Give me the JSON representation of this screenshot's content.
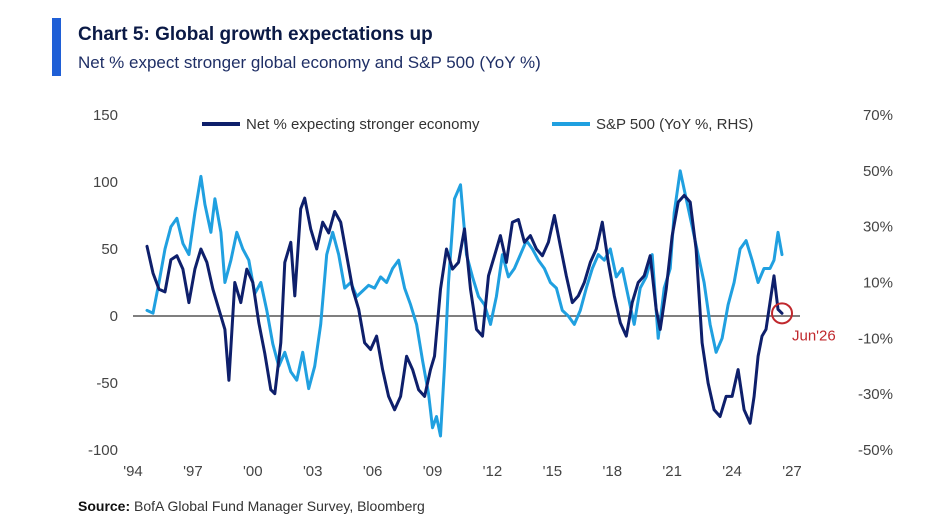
{
  "header": {
    "title": "Chart 5: Global growth expectations up",
    "subtitle": "Net % expect stronger global economy and S&P 500 (YoY %)"
  },
  "source": {
    "label": "Source:",
    "text": " BofA Global Fund Manager Survey, Bloomberg"
  },
  "colors": {
    "accent": "#1f5fd6",
    "net_series": "#0e1f6b",
    "sp_series": "#20a0e0",
    "annotation": "#c0282d"
  },
  "chart_data": {
    "type": "line",
    "x_unit": "year",
    "xlim": [
      1994,
      2027
    ],
    "x_ticks": [
      1994,
      1997,
      2000,
      2003,
      2006,
      2009,
      2012,
      2015,
      2018,
      2021,
      2024,
      2027
    ],
    "x_tick_labels": [
      "'94",
      "'97",
      "'00",
      "'03",
      "'06",
      "'09",
      "'12",
      "'15",
      "'18",
      "'21",
      "'24",
      "'27"
    ],
    "ylim_left": [
      -100,
      150
    ],
    "y_ticks_left": [
      150,
      100,
      50,
      0,
      -50,
      -100
    ],
    "y_tick_labels_left": [
      "150",
      "100",
      "50",
      "0",
      "-50",
      "-100"
    ],
    "ylim_right": [
      -50,
      70
    ],
    "y_ticks_right": [
      70,
      50,
      30,
      10,
      -10,
      -30,
      -50
    ],
    "y_tick_labels_right": [
      "70%",
      "50%",
      "30%",
      "10%",
      "-10%",
      "-30%",
      "-50%"
    ],
    "zero_line": true,
    "legend_position": "top-center",
    "series": [
      {
        "name": "Net % expecting stronger economy",
        "axis": "left",
        "x": [
          1994.7,
          1995.0,
          1995.3,
          1995.6,
          1995.9,
          1996.2,
          1996.5,
          1996.8,
          1997.1,
          1997.4,
          1997.7,
          1998.0,
          1998.3,
          1998.6,
          1998.8,
          1999.1,
          1999.4,
          1999.7,
          2000.0,
          2000.3,
          2000.6,
          2000.9,
          2001.1,
          2001.4,
          2001.6,
          2001.9,
          2002.1,
          2002.4,
          2002.6,
          2002.9,
          2003.2,
          2003.5,
          2003.8,
          2004.1,
          2004.4,
          2004.7,
          2005.0,
          2005.3,
          2005.6,
          2005.9,
          2006.2,
          2006.5,
          2006.8,
          2007.1,
          2007.4,
          2007.7,
          2008.0,
          2008.3,
          2008.6,
          2008.9,
          2009.1,
          2009.4,
          2009.7,
          2010.0,
          2010.3,
          2010.6,
          2010.9,
          2011.2,
          2011.5,
          2011.8,
          2012.1,
          2012.4,
          2012.7,
          2013.0,
          2013.3,
          2013.6,
          2013.9,
          2014.2,
          2014.5,
          2014.8,
          2015.1,
          2015.4,
          2015.7,
          2016.0,
          2016.3,
          2016.6,
          2016.9,
          2017.2,
          2017.5,
          2017.8,
          2018.1,
          2018.4,
          2018.7,
          2019.0,
          2019.3,
          2019.6,
          2019.9,
          2020.2,
          2020.4,
          2020.7,
          2021.0,
          2021.3,
          2021.6,
          2021.9,
          2022.2,
          2022.5,
          2022.8,
          2023.1,
          2023.4,
          2023.7,
          2024.0,
          2024.3,
          2024.6,
          2024.9,
          2025.1,
          2025.3,
          2025.5,
          2025.7,
          2025.9,
          2026.1,
          2026.3,
          2026.5
        ],
        "y": [
          52,
          32,
          20,
          18,
          42,
          45,
          35,
          10,
          35,
          50,
          40,
          20,
          5,
          -10,
          -48,
          25,
          10,
          35,
          25,
          -5,
          -28,
          -55,
          -58,
          -20,
          40,
          55,
          15,
          80,
          88,
          65,
          50,
          70,
          62,
          78,
          70,
          45,
          20,
          5,
          -20,
          -25,
          -15,
          -40,
          -60,
          -70,
          -60,
          -30,
          -40,
          -55,
          -60,
          -40,
          -30,
          20,
          50,
          35,
          40,
          65,
          20,
          -10,
          -15,
          30,
          45,
          60,
          40,
          70,
          72,
          55,
          60,
          50,
          45,
          55,
          75,
          52,
          30,
          10,
          15,
          25,
          40,
          50,
          70,
          40,
          15,
          -5,
          -15,
          10,
          25,
          30,
          45,
          5,
          -10,
          20,
          60,
          85,
          90,
          85,
          50,
          -20,
          -50,
          -70,
          -75,
          -60,
          -60,
          -40,
          -70,
          -80,
          -60,
          -30,
          -15,
          -10,
          10,
          30,
          5,
          2
        ]
      },
      {
        "name": "S&P 500 (YoY %, RHS)",
        "axis": "right",
        "x": [
          1994.7,
          1995.0,
          1995.3,
          1995.6,
          1995.9,
          1996.2,
          1996.5,
          1996.8,
          1997.1,
          1997.4,
          1997.6,
          1997.9,
          1998.1,
          1998.4,
          1998.6,
          1998.9,
          1999.2,
          1999.5,
          1999.8,
          2000.1,
          2000.4,
          2000.7,
          2001.0,
          2001.3,
          2001.6,
          2001.9,
          2002.2,
          2002.5,
          2002.8,
          2003.1,
          2003.4,
          2003.7,
          2004.0,
          2004.3,
          2004.6,
          2004.9,
          2005.2,
          2005.5,
          2005.8,
          2006.1,
          2006.4,
          2006.7,
          2007.0,
          2007.3,
          2007.6,
          2007.9,
          2008.2,
          2008.5,
          2008.8,
          2009.0,
          2009.2,
          2009.4,
          2009.6,
          2009.8,
          2010.1,
          2010.4,
          2010.7,
          2011.0,
          2011.3,
          2011.6,
          2011.9,
          2012.2,
          2012.5,
          2012.8,
          2013.1,
          2013.4,
          2013.7,
          2014.0,
          2014.3,
          2014.6,
          2014.9,
          2015.2,
          2015.5,
          2015.8,
          2016.1,
          2016.4,
          2016.7,
          2017.0,
          2017.3,
          2017.6,
          2017.9,
          2018.2,
          2018.5,
          2018.8,
          2019.1,
          2019.4,
          2019.7,
          2020.0,
          2020.3,
          2020.6,
          2020.9,
          2021.1,
          2021.4,
          2021.7,
          2022.0,
          2022.3,
          2022.6,
          2022.9,
          2023.2,
          2023.5,
          2023.8,
          2024.1,
          2024.4,
          2024.7,
          2025.0,
          2025.3,
          2025.6,
          2025.9,
          2026.1,
          2026.3,
          2026.5
        ],
        "y": [
          0,
          -1,
          10,
          22,
          30,
          33,
          24,
          20,
          35,
          48,
          38,
          28,
          40,
          28,
          10,
          18,
          28,
          22,
          18,
          6,
          10,
          0,
          -12,
          -20,
          -15,
          -22,
          -25,
          -15,
          -28,
          -20,
          -5,
          20,
          28,
          20,
          8,
          10,
          5,
          7,
          9,
          8,
          12,
          10,
          15,
          18,
          8,
          2,
          -5,
          -18,
          -30,
          -42,
          -38,
          -45,
          -20,
          10,
          40,
          45,
          20,
          12,
          5,
          2,
          -5,
          5,
          20,
          12,
          15,
          20,
          25,
          22,
          18,
          15,
          10,
          8,
          0,
          -2,
          -5,
          0,
          8,
          15,
          20,
          18,
          22,
          12,
          15,
          5,
          -5,
          8,
          12,
          20,
          -10,
          8,
          15,
          35,
          50,
          40,
          30,
          20,
          10,
          -5,
          -15,
          -10,
          2,
          10,
          22,
          25,
          18,
          10,
          15,
          15,
          18,
          28,
          20
        ]
      }
    ],
    "annotations": [
      {
        "label": "Jun'26",
        "x": 2026.5,
        "y_left": 2
      }
    ]
  }
}
